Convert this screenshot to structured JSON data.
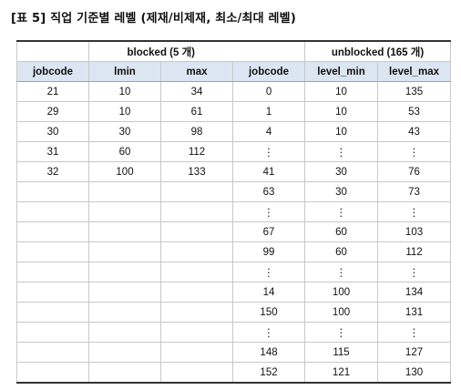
{
  "caption": "[표 5] 직업 기준별 레벨 (제재/비제재, 최소/최대 레벨)",
  "groups": {
    "blocked": "blocked (5 개)",
    "unblocked": "unblocked (165 개)"
  },
  "columns": {
    "blocked": [
      "jobcode",
      "lmin",
      "max"
    ],
    "unblocked": [
      "jobcode",
      "level_min",
      "level_max"
    ]
  },
  "rows": [
    {
      "b": [
        "21",
        "10",
        "34"
      ],
      "u": [
        "0",
        "10",
        "135"
      ]
    },
    {
      "b": [
        "29",
        "10",
        "61"
      ],
      "u": [
        "1",
        "10",
        "53"
      ]
    },
    {
      "b": [
        "30",
        "30",
        "98"
      ],
      "u": [
        "4",
        "10",
        "43"
      ]
    },
    {
      "b": [
        "31",
        "60",
        "112"
      ],
      "u": [
        "⋮",
        "⋮",
        "⋮"
      ]
    },
    {
      "b": [
        "32",
        "100",
        "133"
      ],
      "u": [
        "41",
        "30",
        "76"
      ]
    },
    {
      "b": [
        "",
        "",
        ""
      ],
      "u": [
        "63",
        "30",
        "73"
      ]
    },
    {
      "b": [
        "",
        "",
        ""
      ],
      "u": [
        "⋮",
        "⋮",
        "⋮"
      ]
    },
    {
      "b": [
        "",
        "",
        ""
      ],
      "u": [
        "67",
        "60",
        "103"
      ]
    },
    {
      "b": [
        "",
        "",
        ""
      ],
      "u": [
        "99",
        "60",
        "112"
      ]
    },
    {
      "b": [
        "",
        "",
        ""
      ],
      "u": [
        "⋮",
        "⋮",
        "⋮"
      ]
    },
    {
      "b": [
        "",
        "",
        ""
      ],
      "u": [
        "14",
        "100",
        "134"
      ]
    },
    {
      "b": [
        "",
        "",
        ""
      ],
      "u": [
        "150",
        "100",
        "131"
      ]
    },
    {
      "b": [
        "",
        "",
        ""
      ],
      "u": [
        "⋮",
        "⋮",
        "⋮"
      ]
    },
    {
      "b": [
        "",
        "",
        ""
      ],
      "u": [
        "148",
        "115",
        "127"
      ]
    },
    {
      "b": [
        "",
        "",
        ""
      ],
      "u": [
        "152",
        "121",
        "130"
      ]
    }
  ]
}
